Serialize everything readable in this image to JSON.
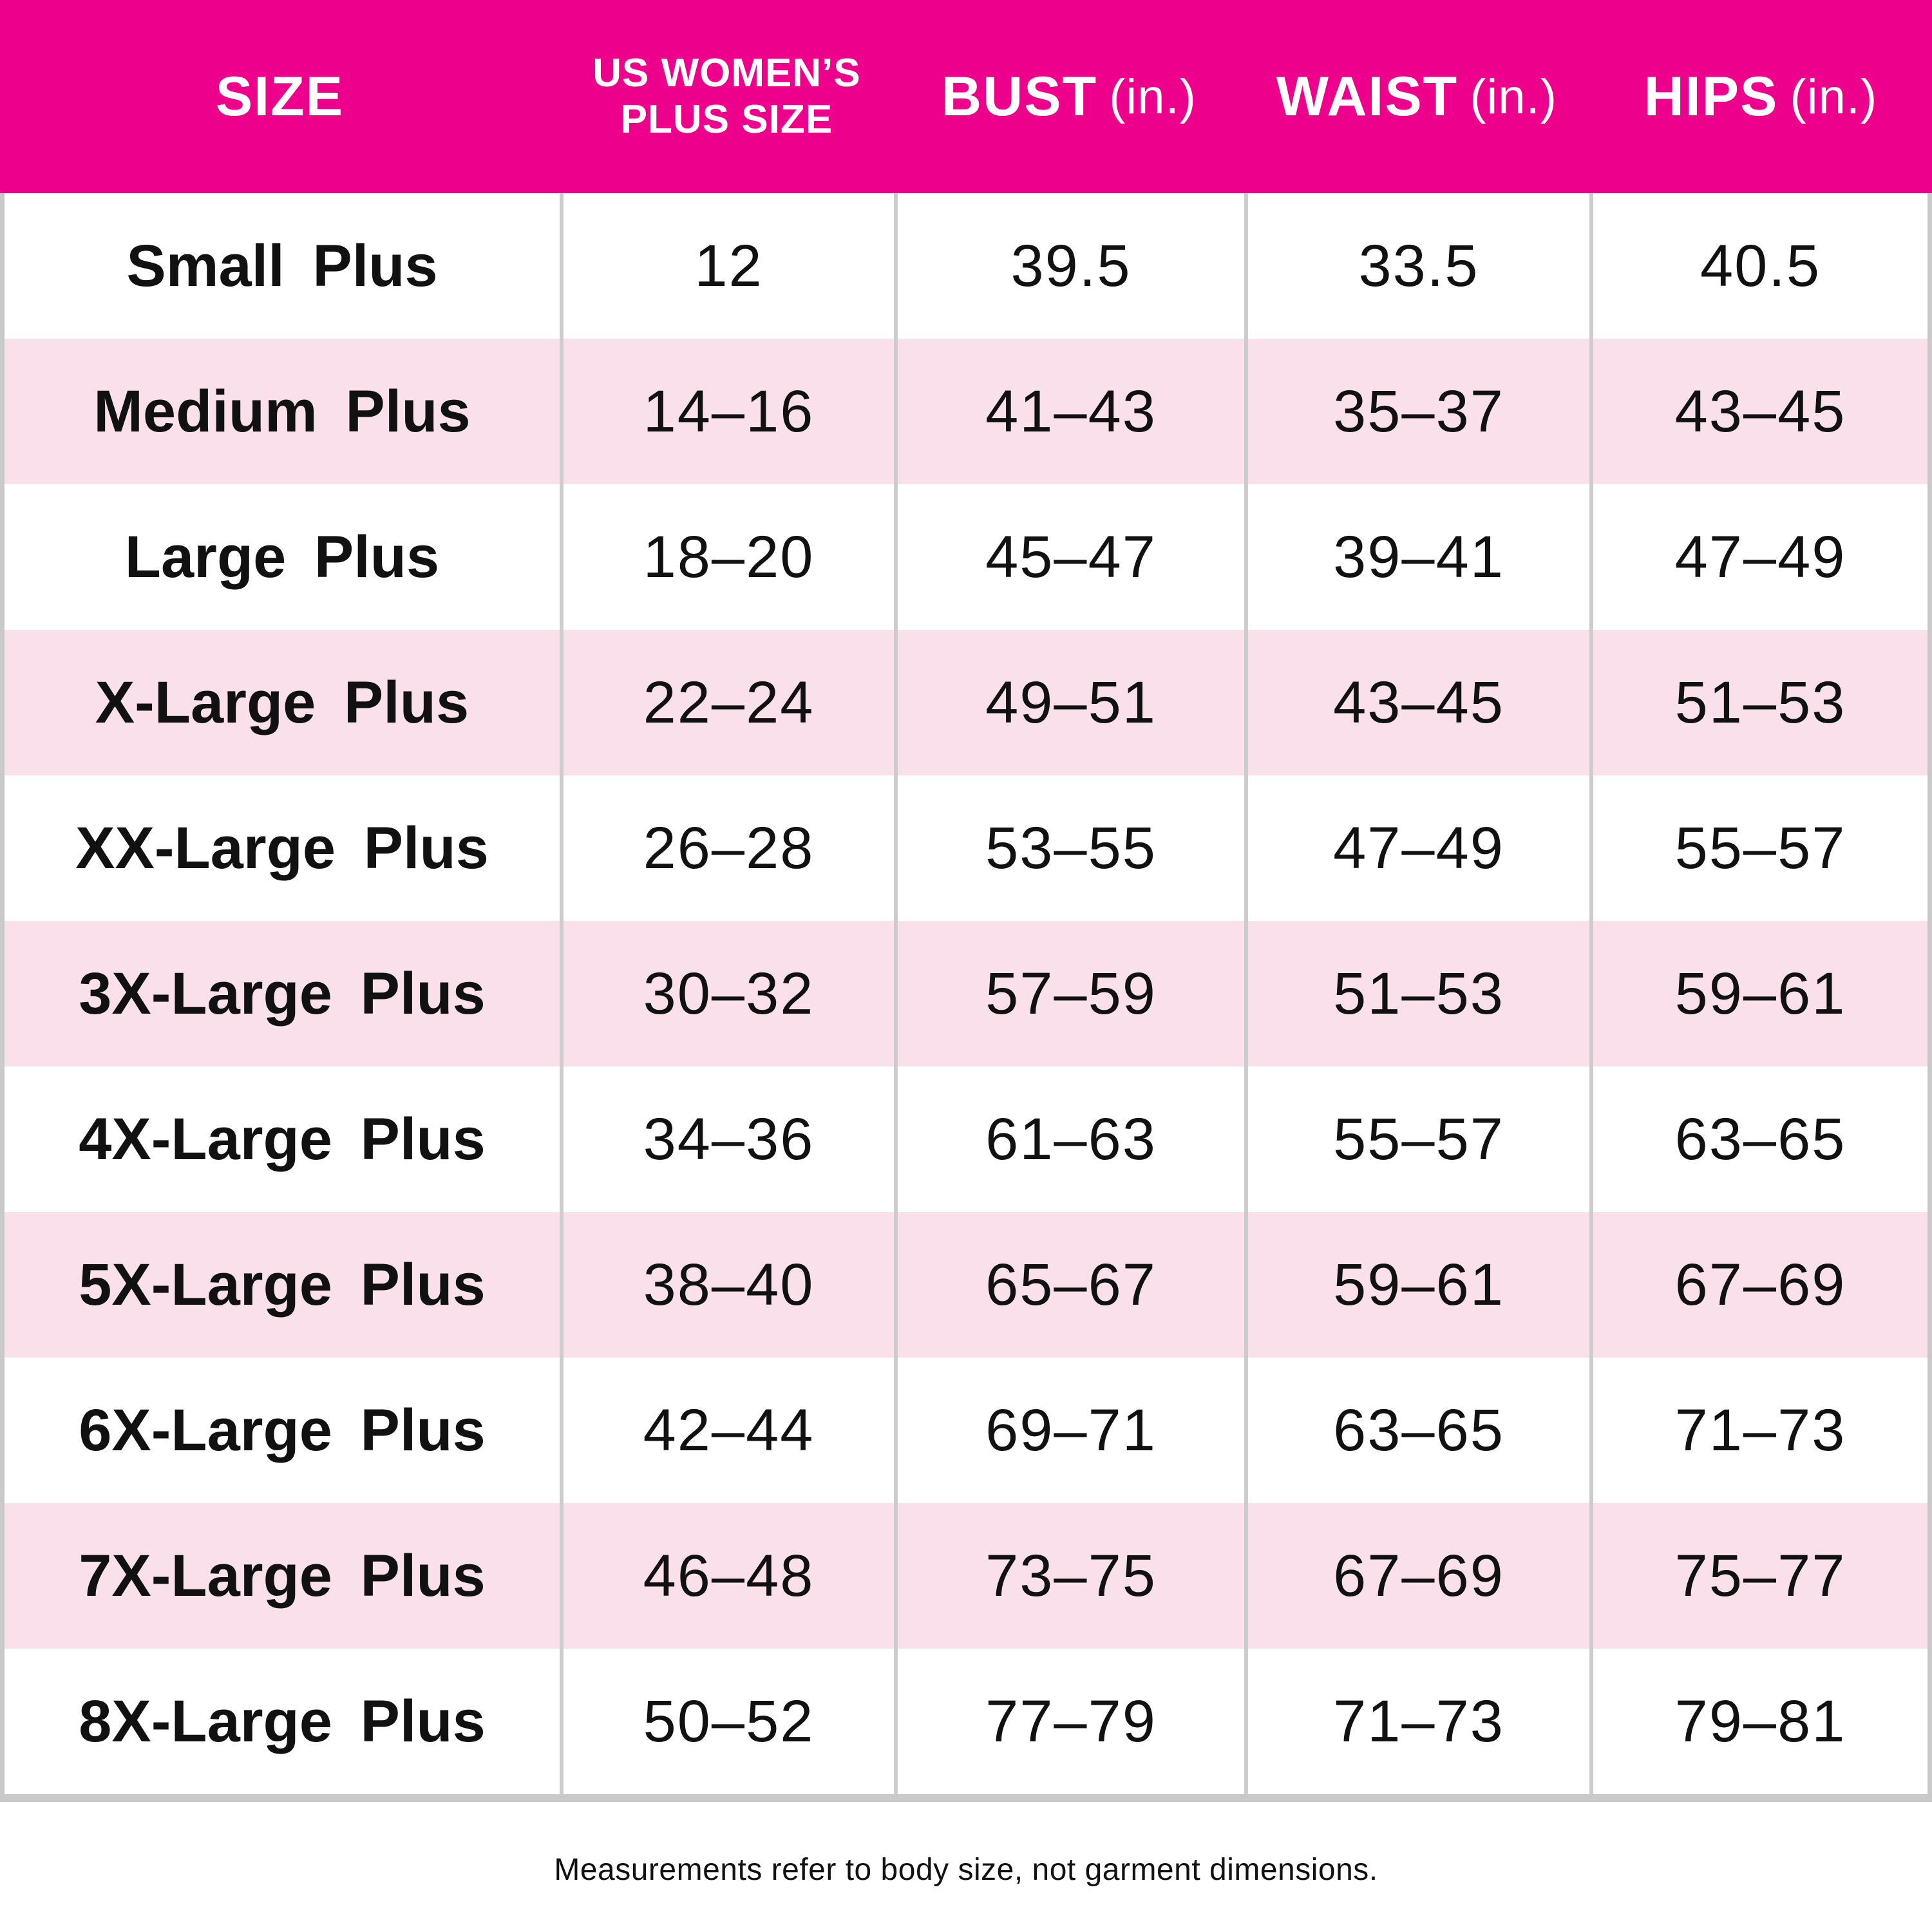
{
  "colors": {
    "header_bg": "#EC008C",
    "row_alt_bg": "#F9E0EA",
    "row_bg": "#FFFFFF",
    "divider": "#CCCCCC",
    "frame": "#C9C9C9",
    "text": "#111111",
    "header_text": "#FFFFFF"
  },
  "table": {
    "header": {
      "size": "SIZE",
      "us_line1": "US WOMEN’S",
      "us_line2": "PLUS SIZE",
      "bust": "BUST",
      "waist": "WAIST",
      "hips": "HIPS",
      "unit": "(in.)"
    },
    "rows": [
      [
        "Small Plus",
        "12",
        "39.5",
        "33.5",
        "40.5"
      ],
      [
        "Medium Plus",
        "14–16",
        "41–43",
        "35–37",
        "43–45"
      ],
      [
        "Large Plus",
        "18–20",
        "45–47",
        "39–41",
        "47–49"
      ],
      [
        "X-Large Plus",
        "22–24",
        "49–51",
        "43–45",
        "51–53"
      ],
      [
        "XX-Large Plus",
        "26–28",
        "53–55",
        "47–49",
        "55–57"
      ],
      [
        "3X-Large Plus",
        "30–32",
        "57–59",
        "51–53",
        "59–61"
      ],
      [
        "4X-Large Plus",
        "34–36",
        "61–63",
        "55–57",
        "63–65"
      ],
      [
        "5X-Large Plus",
        "38–40",
        "65–67",
        "59–61",
        "67–69"
      ],
      [
        "6X-Large Plus",
        "42–44",
        "69–71",
        "63–65",
        "71–73"
      ],
      [
        "7X-Large Plus",
        "46–48",
        "73–75",
        "67–69",
        "75–77"
      ],
      [
        "8X-Large Plus",
        "50–52",
        "77–79",
        "71–73",
        "79–81"
      ]
    ]
  },
  "footnote": "Measurements refer to body size, not garment dimensions.",
  "chart_data": {
    "type": "table",
    "title": "US Women's Plus Size Chart",
    "columns": [
      "SIZE",
      "US WOMEN'S PLUS SIZE",
      "BUST (in.)",
      "WAIST (in.)",
      "HIPS (in.)"
    ],
    "rows": [
      [
        "Small Plus",
        "12",
        "39.5",
        "33.5",
        "40.5"
      ],
      [
        "Medium Plus",
        "14-16",
        "41-43",
        "35-37",
        "43-45"
      ],
      [
        "Large Plus",
        "18-20",
        "45-47",
        "39-41",
        "47-49"
      ],
      [
        "X-Large Plus",
        "22-24",
        "49-51",
        "43-45",
        "51-53"
      ],
      [
        "XX-Large Plus",
        "26-28",
        "53-55",
        "47-49",
        "55-57"
      ],
      [
        "3X-Large Plus",
        "30-32",
        "57-59",
        "51-53",
        "59-61"
      ],
      [
        "4X-Large Plus",
        "34-36",
        "61-63",
        "55-57",
        "63-65"
      ],
      [
        "5X-Large Plus",
        "38-40",
        "65-67",
        "59-61",
        "67-69"
      ],
      [
        "6X-Large Plus",
        "42-44",
        "69-71",
        "63-65",
        "71-73"
      ],
      [
        "7X-Large Plus",
        "46-48",
        "73-75",
        "67-69",
        "75-77"
      ],
      [
        "8X-Large Plus",
        "50-52",
        "77-79",
        "71-73",
        "79-81"
      ]
    ],
    "footnote": "Measurements refer to body size, not garment dimensions.",
    "layout": {
      "header_color": "#EC008C",
      "alternating_row_color": "#F9E0EA",
      "row_striping": "odd rows pink starting with second row"
    }
  }
}
